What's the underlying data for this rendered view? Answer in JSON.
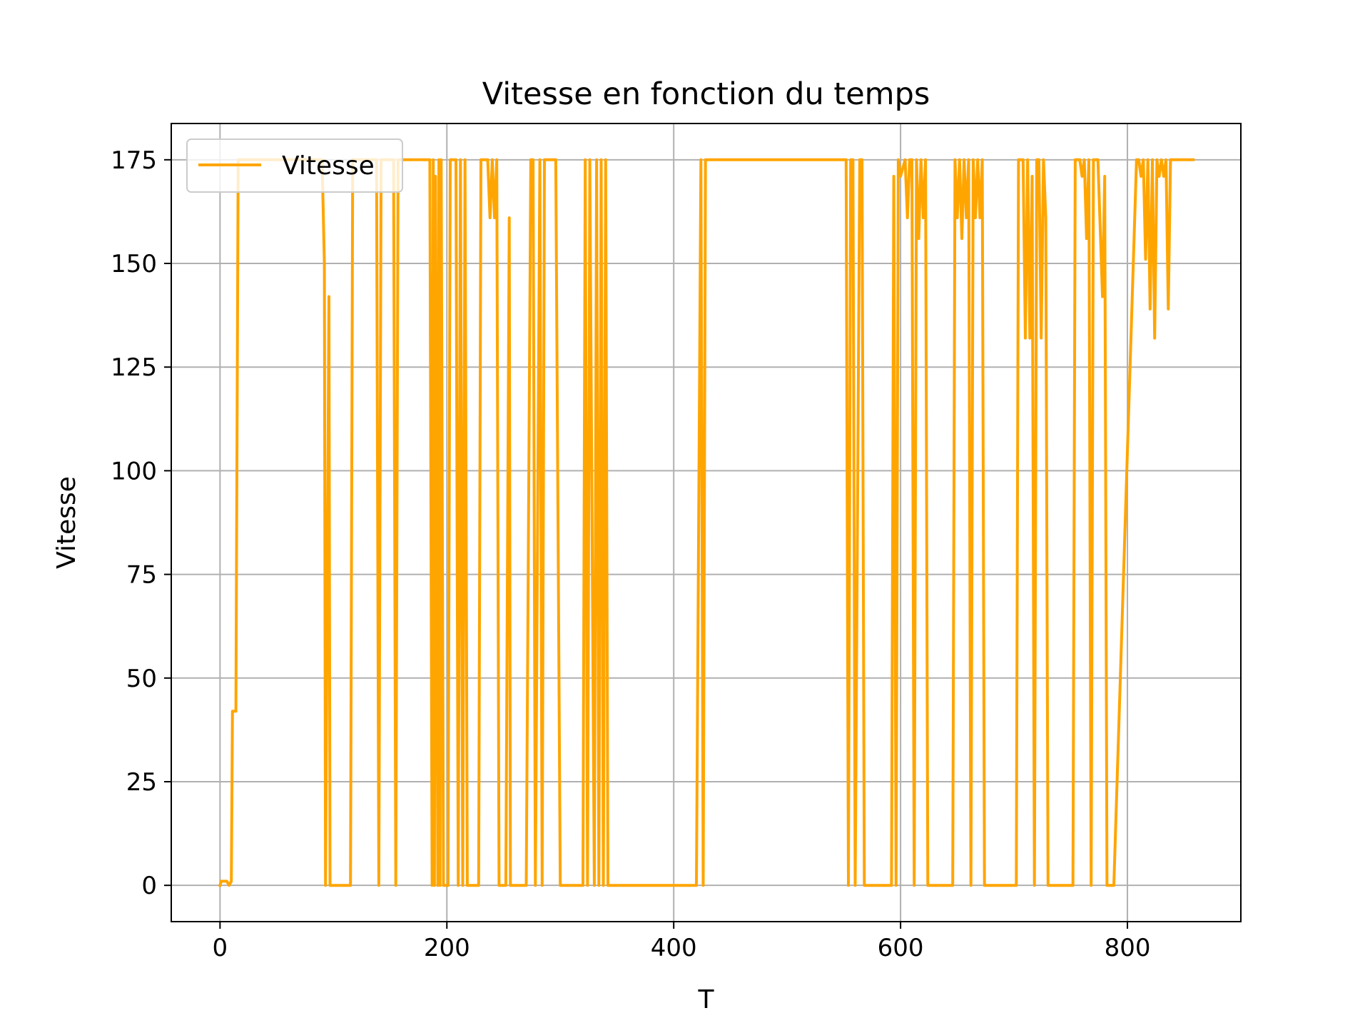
{
  "chart_data": {
    "type": "line",
    "title": "Vitesse en fonction du temps",
    "xlabel": "T",
    "ylabel": "Vitesse",
    "xlim": [
      -43,
      900
    ],
    "ylim": [
      -8.75,
      183.75
    ],
    "xticks": [
      0,
      200,
      400,
      600,
      800
    ],
    "yticks": [
      0,
      25,
      50,
      75,
      100,
      125,
      150,
      175
    ],
    "grid": true,
    "legend_position": "top-left",
    "series": [
      {
        "name": "Vitesse",
        "color": "#ffa500",
        "x": [
          0,
          1,
          6,
          8,
          10,
          11,
          13,
          14,
          16,
          18,
          20,
          90,
          92,
          93,
          96,
          97,
          100,
          115,
          117,
          118,
          120,
          138,
          140,
          142,
          144,
          153,
          155,
          157,
          185,
          187,
          188,
          189,
          190,
          192,
          193,
          194,
          195,
          197,
          199,
          201,
          203,
          208,
          210,
          212,
          214,
          216,
          218,
          228,
          230,
          232,
          236,
          238,
          240,
          242,
          244,
          246,
          248,
          252,
          255,
          256,
          257,
          258,
          260,
          270,
          274,
          276,
          278,
          282,
          284,
          286,
          288,
          290,
          292,
          296,
          300,
          301,
          303,
          320,
          322,
          324,
          326,
          330,
          332,
          334,
          336,
          338,
          340,
          342,
          344,
          346,
          348,
          350,
          420,
          424,
          426,
          428,
          430,
          432,
          434,
          550,
          552,
          554,
          556,
          558,
          560,
          564,
          566,
          568,
          590,
          592,
          594,
          596,
          598,
          600,
          604,
          606,
          608,
          610,
          612,
          614,
          616,
          618,
          620,
          622,
          624,
          626,
          628,
          630,
          644,
          646,
          648,
          650,
          652,
          654,
          656,
          658,
          660,
          662,
          664,
          666,
          668,
          670,
          672,
          674,
          676,
          700,
          702,
          704,
          708,
          710,
          712,
          714,
          716,
          718,
          720,
          722,
          724,
          726,
          728,
          730,
          750,
          752,
          754,
          758,
          760,
          762,
          764,
          766,
          768,
          770,
          772,
          774,
          778,
          780,
          782,
          784,
          786,
          788,
          808,
          810,
          812,
          814,
          816,
          818,
          820,
          822,
          824,
          826,
          828,
          830,
          832,
          834,
          836,
          838,
          840,
          842,
          844,
          846,
          848,
          858
        ],
        "y": [
          0,
          1,
          1,
          0,
          1,
          42,
          42,
          42,
          175,
          175,
          175,
          175,
          150,
          0,
          142,
          0,
          0,
          0,
          175,
          175,
          175,
          175,
          0,
          175,
          175,
          175,
          0,
          175,
          175,
          0,
          175,
          0,
          171,
          0,
          175,
          0,
          175,
          0,
          0,
          0,
          175,
          175,
          0,
          175,
          0,
          175,
          0,
          0,
          175,
          175,
          175,
          161,
          175,
          161,
          175,
          0,
          0,
          0,
          161,
          0,
          0,
          0,
          0,
          0,
          175,
          175,
          0,
          175,
          0,
          175,
          175,
          175,
          175,
          175,
          0,
          0,
          0,
          0,
          175,
          0,
          175,
          0,
          175,
          0,
          175,
          0,
          175,
          0,
          0,
          0,
          0,
          0,
          0,
          175,
          0,
          175,
          175,
          175,
          175,
          175,
          175,
          0,
          175,
          175,
          0,
          175,
          175,
          0,
          0,
          0,
          171,
          0,
          175,
          171,
          175,
          161,
          175,
          175,
          0,
          175,
          156,
          175,
          161,
          175,
          0,
          0,
          0,
          0,
          0,
          0,
          175,
          161,
          175,
          156,
          175,
          161,
          175,
          0,
          175,
          161,
          175,
          161,
          175,
          0,
          0,
          0,
          0,
          175,
          175,
          132,
          175,
          132,
          171,
          0,
          175,
          175,
          132,
          175,
          161,
          0,
          0,
          0,
          175,
          175,
          171,
          175,
          156,
          175,
          0,
          175,
          175,
          175,
          142,
          171,
          0,
          0,
          0,
          0,
          175,
          175,
          171,
          175,
          151,
          175,
          139,
          175,
          132,
          175,
          171,
          175,
          171,
          175,
          139,
          175,
          175,
          175,
          175,
          175,
          175,
          175
        ]
      }
    ]
  }
}
